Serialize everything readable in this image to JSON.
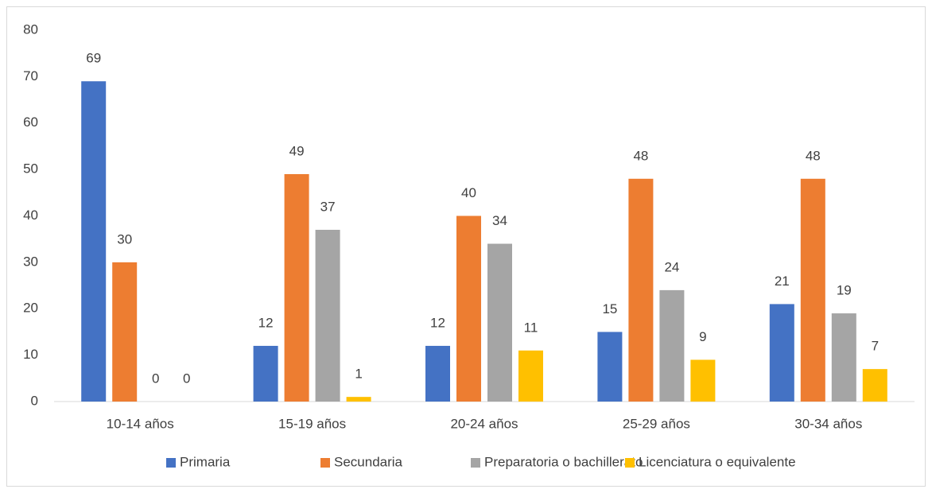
{
  "chart_data": {
    "type": "bar",
    "categories": [
      "10-14 años",
      "15-19 años",
      "20-24 años",
      "25-29 años",
      "30-34 años"
    ],
    "series": [
      {
        "name": "Primaria",
        "color": "#4472c4",
        "values": [
          69,
          12,
          12,
          15,
          21
        ]
      },
      {
        "name": "Secundaria",
        "color": "#ed7d31",
        "values": [
          30,
          49,
          40,
          48,
          48
        ]
      },
      {
        "name": "Preparatoria o bachillerato",
        "color": "#a5a5a5",
        "values": [
          0,
          37,
          34,
          24,
          19
        ]
      },
      {
        "name": "Licenciatura o equivalente",
        "color": "#ffc000",
        "values": [
          0,
          1,
          11,
          9,
          7
        ]
      }
    ],
    "ylim": [
      0,
      80
    ],
    "yticks": [
      0,
      10,
      20,
      30,
      40,
      50,
      60,
      70,
      80
    ],
    "grid": false,
    "legend": "bottom"
  }
}
